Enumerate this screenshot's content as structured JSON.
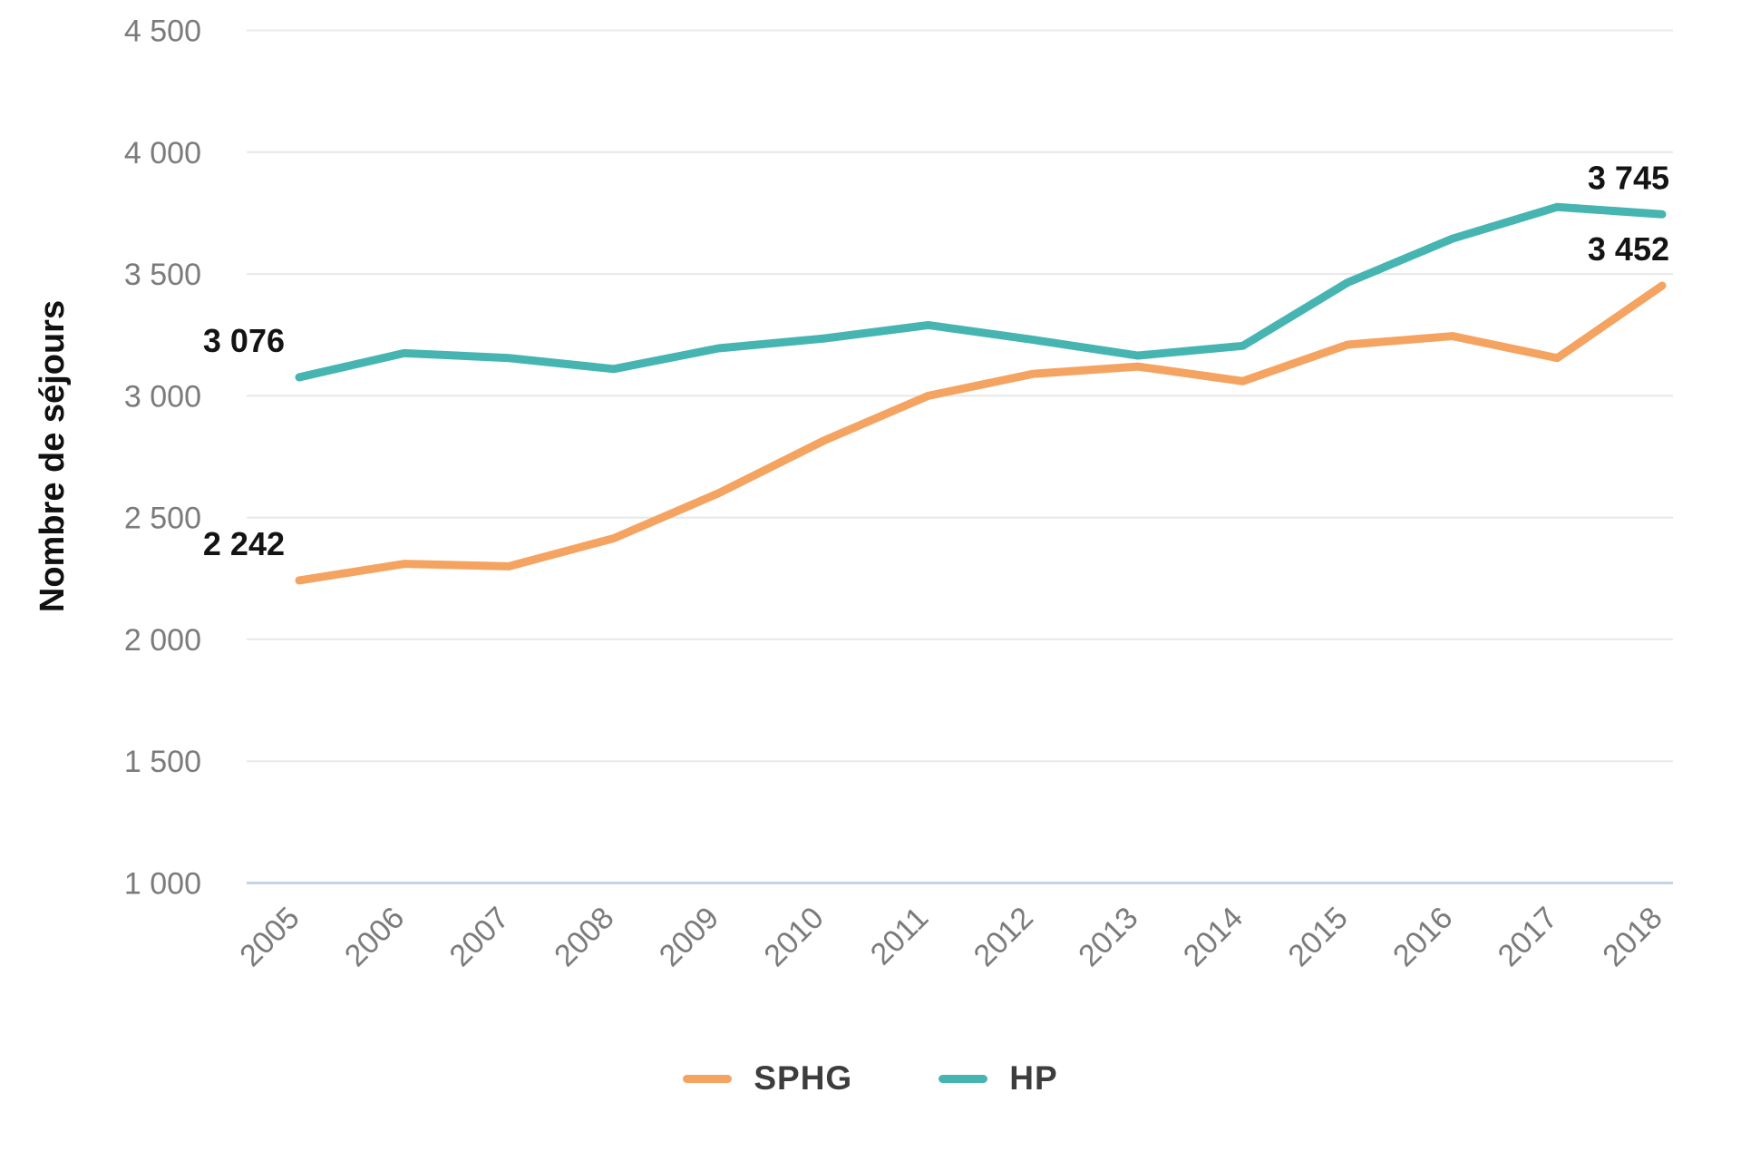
{
  "chart_data": {
    "type": "line",
    "title": "",
    "xlabel": "",
    "ylabel": "Nombre de séjours",
    "categories": [
      "2005",
      "2006",
      "2007",
      "2008",
      "2009",
      "2010",
      "2011",
      "2012",
      "2013",
      "2014",
      "2015",
      "2016",
      "2017",
      "2018"
    ],
    "series": [
      {
        "name": "SPHG",
        "color": "#f5a361",
        "values": [
          2242,
          2310,
          2300,
          2415,
          2600,
          2815,
          3000,
          3090,
          3120,
          3060,
          3210,
          3245,
          3155,
          3452
        ]
      },
      {
        "name": "HP",
        "color": "#46b5b2",
        "values": [
          3076,
          3175,
          3155,
          3110,
          3195,
          3235,
          3290,
          3230,
          3165,
          3205,
          3465,
          3645,
          3775,
          3745
        ]
      }
    ],
    "ylim": [
      1000,
      4500
    ],
    "yticks": [
      {
        "value": 4500,
        "label": "4 500"
      },
      {
        "value": 4000,
        "label": "4 000"
      },
      {
        "value": 3500,
        "label": "3 500"
      },
      {
        "value": 3000,
        "label": "3 000"
      },
      {
        "value": 2500,
        "label": "2 500"
      },
      {
        "value": 2000,
        "label": "2 000"
      },
      {
        "value": 1500,
        "label": "1 500"
      },
      {
        "value": 1000,
        "label": "1 000"
      }
    ],
    "grid": "horizontal",
    "legend_position": "bottom",
    "annotations": [
      {
        "series": "HP",
        "index": 0,
        "text": "3 076"
      },
      {
        "series": "SPHG",
        "index": 0,
        "text": "2 242"
      },
      {
        "series": "HP",
        "index": 13,
        "text": "3 745"
      },
      {
        "series": "SPHG",
        "index": 13,
        "text": "3 452"
      }
    ]
  },
  "colors": {
    "background": "#ffffff",
    "grid_line": "#e8e8e8",
    "axis_base_line": "#c7d3ec",
    "tick_text": "#7b7b7b",
    "annotation_text": "#141414",
    "axis_title_text": "#111111",
    "legend_text": "#3d3d3d"
  }
}
